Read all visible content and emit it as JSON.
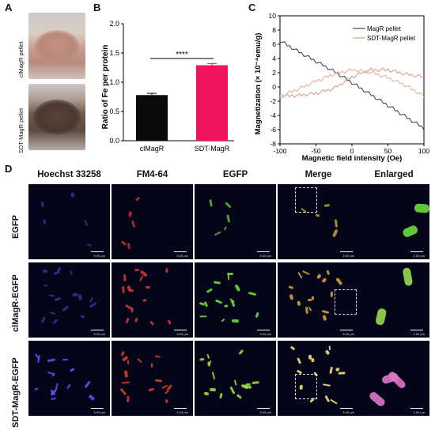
{
  "panels": {
    "a": "A",
    "b": "B",
    "c": "C",
    "d": "D"
  },
  "panel_a": {
    "top_label": "clMagR pellet",
    "bottom_label": "SDT-MagR pellet"
  },
  "chart_data": [
    {
      "type": "bar",
      "categories": [
        "clMagR",
        "SDT-MagR"
      ],
      "values": [
        0.78,
        1.29
      ],
      "errors": [
        0.03,
        0.03
      ],
      "ylabel": "Ratio of Fe per protein",
      "ylim": [
        0,
        2.0
      ],
      "yticks": [
        "0.0",
        "0.5",
        "1.0",
        "1.5",
        "2.0"
      ],
      "significance": "****",
      "colors": [
        "#0a0a0a",
        "#f0155f"
      ]
    },
    {
      "type": "line",
      "xlabel": "Magnetic field intensity (Oe)",
      "ylabel": "Magnetization (× 10⁻⁴emu/g)",
      "xlim": [
        -100,
        100
      ],
      "ylim": [
        -8,
        10
      ],
      "xticks": [
        "-100",
        "-50",
        "0",
        "50",
        "100"
      ],
      "yticks": [
        "-8",
        "-6",
        "-4",
        "-2",
        "0",
        "2",
        "4",
        "6",
        "8",
        "10"
      ],
      "legend_position": "top-right",
      "series": [
        {
          "name": "MagR pellet",
          "color": "#4a4a4a",
          "x": [
            -100,
            -75,
            -50,
            -25,
            0,
            25,
            50,
            75,
            100
          ],
          "y": [
            6.5,
            5.0,
            3.6,
            2.2,
            0.6,
            -1.0,
            -2.6,
            -4.2,
            -5.8
          ]
        },
        {
          "name": "SDT-MagR pellet",
          "color": "#d4a088",
          "x": [
            -100,
            -75,
            -50,
            -25,
            0,
            25,
            50,
            75,
            100
          ],
          "y": [
            -1.3,
            -1.2,
            -0.9,
            -0.2,
            1.4,
            2.4,
            2.4,
            1.8,
            1.4
          ]
        },
        {
          "name": "",
          "color": "#e8b0a0",
          "x": [
            -100,
            -75,
            -50,
            -25,
            0,
            25,
            50,
            75,
            100
          ],
          "y": [
            -1.3,
            -0.3,
            0.8,
            1.8,
            2.4,
            2.1,
            1.3,
            0.2,
            -1.3
          ]
        }
      ]
    }
  ],
  "panel_d": {
    "columns": [
      "Hoechst 33258",
      "FM4-64",
      "EGFP",
      "Merge",
      "Enlarged"
    ],
    "rows": [
      "EGFP",
      "clMagR-EGFP",
      "SDT-MagR-EGFP"
    ],
    "scale_bar": "5.00 µm",
    "scale_bar_enlarged": "2.00 µm"
  }
}
